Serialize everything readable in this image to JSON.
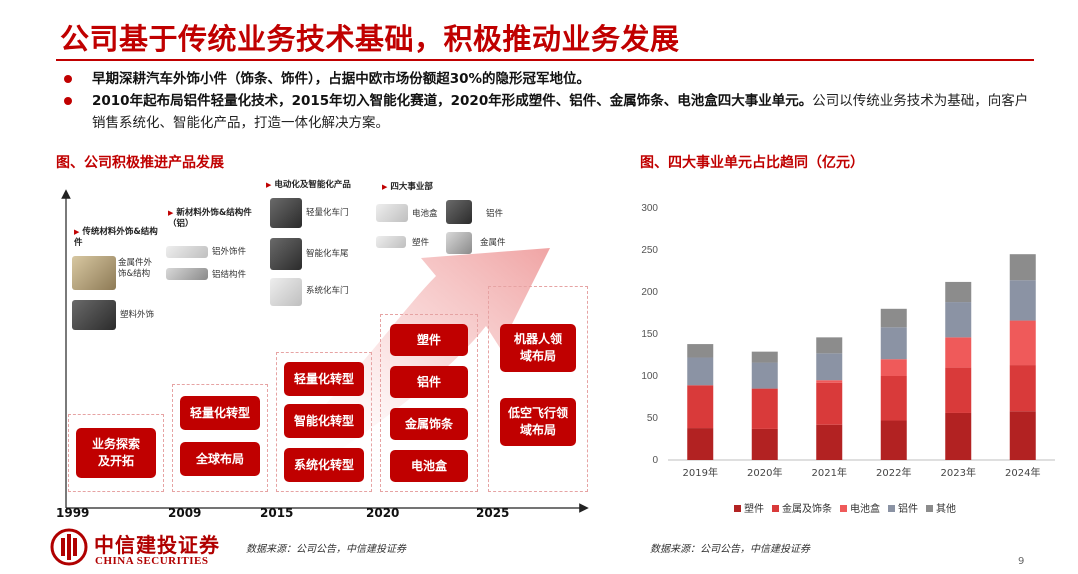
{
  "title": "公司基于传统业务技术基础，积极推动业务发展",
  "bullets": [
    {
      "bold": "早期深耕汽车外饰小件（饰条、饰件），占据中欧市场份额超30%的隐形冠军地位。",
      "normal": ""
    },
    {
      "bold": "2010年起布局铝件轻量化技术，2015年切入智能化赛道，2020年形成塑件、铝件、金属饰条、电池盒四大事业单元。",
      "normal": "公司以传统业务技术为基础，向客户销售系统化、智能化产品，打造一体化解决方案。"
    }
  ],
  "left_section": {
    "title": "图、公司积极推进产品发展",
    "groups": {
      "g1": {
        "title": "传统材料外饰&结构件",
        "items": [
          "金属件外饰&结构",
          "塑料外饰"
        ]
      },
      "g2": {
        "title": "新材料外饰&结构件（铝）",
        "items": [
          "铝外饰件",
          "铝结构件"
        ]
      },
      "g3": {
        "title": "电动化及智能化产品",
        "items": [
          "轻量化车门",
          "智能化车尾",
          "系统化车门"
        ]
      },
      "g4": {
        "title": "四大事业部",
        "items": [
          "电池盒",
          "铝件",
          "塑件",
          "金属件"
        ]
      }
    },
    "stages": {
      "s1999": [
        "业务探索及开拓"
      ],
      "s2009": [
        "轻量化转型",
        "全球布局"
      ],
      "s2015": [
        "轻量化转型",
        "智能化转型",
        "系统化转型"
      ],
      "s2020": [
        "塑件",
        "铝件",
        "金属饰条",
        "电池盒"
      ],
      "s2025": [
        "机器人领域布局",
        "低空飞行领域布局"
      ]
    },
    "years": [
      "1999",
      "2009",
      "2015",
      "2020",
      "2025"
    ],
    "source": "数据来源：公司公告，中信建投证券"
  },
  "right_section": {
    "title": "图、四大事业单元占比趋同（亿元）",
    "source": "数据来源：公司公告，中信建投证券"
  },
  "chart_data": {
    "type": "bar",
    "stacked": true,
    "categories": [
      "2019年",
      "2020年",
      "2021年",
      "2022年",
      "2023年",
      "2024年"
    ],
    "series": [
      {
        "name": "塑件",
        "color": "#b22222",
        "values": [
          38,
          37,
          42,
          47,
          56,
          58
        ]
      },
      {
        "name": "金属及饰条",
        "color": "#d93a3a",
        "values": [
          51,
          48,
          50,
          53,
          54,
          55
        ]
      },
      {
        "name": "电池盒",
        "color": "#ef5a5a",
        "values": [
          0,
          0,
          3,
          20,
          36,
          53
        ]
      },
      {
        "name": "铝件",
        "color": "#8b93a4",
        "values": [
          33,
          31,
          32,
          38,
          42,
          48
        ]
      },
      {
        "name": "其他",
        "color": "#8c8c8c",
        "values": [
          16,
          13,
          19,
          22,
          24,
          31
        ]
      }
    ],
    "yticks": [
      "0",
      "50",
      "100",
      "150",
      "200",
      "250",
      "300"
    ],
    "ylim": [
      0,
      300
    ],
    "grid": false,
    "legend": "bottom"
  },
  "footer": {
    "logo_cn": "中信建投证券",
    "logo_en": "CHINA SECURITIES",
    "page": "9"
  }
}
